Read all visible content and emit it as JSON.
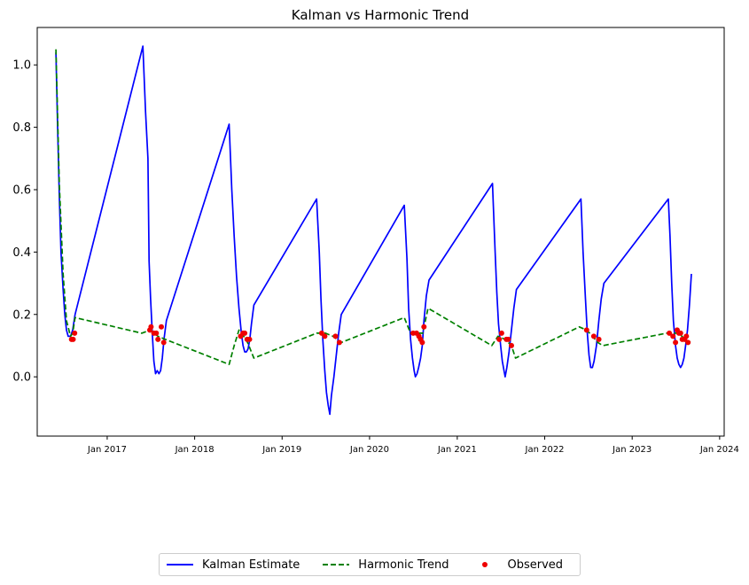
{
  "chart_data": {
    "type": "line",
    "title": "Kalman vs Harmonic Trend",
    "xlabel": "",
    "ylabel": "",
    "xlim": [
      "2016-03-15",
      "2024-01-20"
    ],
    "ylim": [
      -0.19,
      1.12
    ],
    "x_ticks": [
      "2017-01-01",
      "2018-01-01",
      "2019-01-01",
      "2020-01-01",
      "2021-01-01",
      "2022-01-01",
      "2023-01-01",
      "2024-01-01"
    ],
    "x_tick_labels": [
      "Jan 2017",
      "Jan 2018",
      "Jan 2019",
      "Jan 2020",
      "Jan 2021",
      "Jan 2022",
      "Jan 2023",
      "Jan 2024"
    ],
    "y_ticks": [
      0.0,
      0.2,
      0.4,
      0.6,
      0.8,
      1.0
    ],
    "y_tick_labels": [
      "0.0",
      "0.2",
      "0.4",
      "0.6",
      "0.8",
      "1.0"
    ],
    "grid": false,
    "legend_position": "bottom-center",
    "series": [
      {
        "name": "Kalman Estimate",
        "style": "solid",
        "color": "#0000ff",
        "points": [
          [
            "2016-06-01",
            1.04
          ],
          [
            "2016-06-08",
            0.8
          ],
          [
            "2016-06-15",
            0.58
          ],
          [
            "2016-06-22",
            0.4
          ],
          [
            "2016-07-01",
            0.28
          ],
          [
            "2016-07-08",
            0.2
          ],
          [
            "2016-07-15",
            0.15
          ],
          [
            "2016-07-22",
            0.13
          ],
          [
            "2016-08-01",
            0.13
          ],
          [
            "2016-08-10",
            0.15
          ],
          [
            "2016-08-20",
            0.2
          ],
          [
            "2017-05-30",
            1.06
          ],
          [
            "2017-06-10",
            0.85
          ],
          [
            "2017-06-20",
            0.7
          ],
          [
            "2017-06-25",
            0.37
          ],
          [
            "2017-07-01",
            0.25
          ],
          [
            "2017-07-08",
            0.14
          ],
          [
            "2017-07-15",
            0.05
          ],
          [
            "2017-07-22",
            0.01
          ],
          [
            "2017-07-29",
            0.02
          ],
          [
            "2017-08-05",
            0.01
          ],
          [
            "2017-08-12",
            0.02
          ],
          [
            "2017-08-19",
            0.06
          ],
          [
            "2017-08-26",
            0.12
          ],
          [
            "2017-09-05",
            0.18
          ],
          [
            "2018-05-25",
            0.81
          ],
          [
            "2018-06-05",
            0.6
          ],
          [
            "2018-06-15",
            0.45
          ],
          [
            "2018-06-25",
            0.32
          ],
          [
            "2018-07-05",
            0.22
          ],
          [
            "2018-07-15",
            0.14
          ],
          [
            "2018-07-22",
            0.1
          ],
          [
            "2018-07-29",
            0.08
          ],
          [
            "2018-08-05",
            0.08
          ],
          [
            "2018-08-12",
            0.09
          ],
          [
            "2018-08-19",
            0.12
          ],
          [
            "2018-08-26",
            0.17
          ],
          [
            "2018-09-05",
            0.23
          ],
          [
            "2019-05-25",
            0.57
          ],
          [
            "2019-06-05",
            0.4
          ],
          [
            "2019-06-12",
            0.25
          ],
          [
            "2019-06-20",
            0.12
          ],
          [
            "2019-06-28",
            0.02
          ],
          [
            "2019-07-05",
            -0.05
          ],
          [
            "2019-07-12",
            -0.09
          ],
          [
            "2019-07-19",
            -0.12
          ],
          [
            "2019-07-26",
            -0.06
          ],
          [
            "2019-08-05",
            0.0
          ],
          [
            "2019-08-15",
            0.07
          ],
          [
            "2019-08-25",
            0.14
          ],
          [
            "2019-09-05",
            0.2
          ],
          [
            "2020-05-25",
            0.55
          ],
          [
            "2020-06-05",
            0.38
          ],
          [
            "2020-06-12",
            0.22
          ],
          [
            "2020-06-20",
            0.12
          ],
          [
            "2020-06-28",
            0.06
          ],
          [
            "2020-07-05",
            0.02
          ],
          [
            "2020-07-10",
            0.0
          ],
          [
            "2020-07-17",
            0.01
          ],
          [
            "2020-07-24",
            0.03
          ],
          [
            "2020-08-01",
            0.06
          ],
          [
            "2020-08-08",
            0.1
          ],
          [
            "2020-08-15",
            0.18
          ],
          [
            "2020-08-25",
            0.26
          ],
          [
            "2020-09-05",
            0.31
          ],
          [
            "2021-05-28",
            0.62
          ],
          [
            "2021-06-08",
            0.4
          ],
          [
            "2021-06-15",
            0.27
          ],
          [
            "2021-06-22",
            0.17
          ],
          [
            "2021-07-01",
            0.1
          ],
          [
            "2021-07-08",
            0.05
          ],
          [
            "2021-07-15",
            0.02
          ],
          [
            "2021-07-20",
            0.0
          ],
          [
            "2021-07-27",
            0.03
          ],
          [
            "2021-08-05",
            0.08
          ],
          [
            "2021-08-15",
            0.15
          ],
          [
            "2021-08-25",
            0.22
          ],
          [
            "2021-09-05",
            0.28
          ],
          [
            "2022-06-01",
            0.57
          ],
          [
            "2022-06-10",
            0.4
          ],
          [
            "2022-06-20",
            0.25
          ],
          [
            "2022-06-28",
            0.14
          ],
          [
            "2022-07-05",
            0.07
          ],
          [
            "2022-07-12",
            0.03
          ],
          [
            "2022-07-19",
            0.03
          ],
          [
            "2022-07-26",
            0.05
          ],
          [
            "2022-08-05",
            0.1
          ],
          [
            "2022-08-15",
            0.18
          ],
          [
            "2022-08-25",
            0.25
          ],
          [
            "2022-09-05",
            0.3
          ],
          [
            "2023-06-01",
            0.57
          ],
          [
            "2023-06-08",
            0.45
          ],
          [
            "2023-06-15",
            0.3
          ],
          [
            "2023-06-22",
            0.18
          ],
          [
            "2023-07-01",
            0.1
          ],
          [
            "2023-07-08",
            0.06
          ],
          [
            "2023-07-15",
            0.04
          ],
          [
            "2023-07-22",
            0.03
          ],
          [
            "2023-07-29",
            0.04
          ],
          [
            "2023-08-05",
            0.06
          ],
          [
            "2023-08-12",
            0.1
          ],
          [
            "2023-08-20",
            0.15
          ],
          [
            "2023-08-28",
            0.23
          ],
          [
            "2023-09-05",
            0.33
          ]
        ]
      },
      {
        "name": "Harmonic Trend",
        "style": "dashed",
        "color": "#008000",
        "points": [
          [
            "2016-06-01",
            1.05
          ],
          [
            "2016-06-15",
            0.62
          ],
          [
            "2016-07-01",
            0.33
          ],
          [
            "2016-07-15",
            0.18
          ],
          [
            "2016-08-01",
            0.13
          ],
          [
            "2016-08-10",
            0.14
          ],
          [
            "2016-08-20",
            0.19
          ],
          [
            "2017-05-25",
            0.14
          ],
          [
            "2017-07-01",
            0.15
          ],
          [
            "2017-08-01",
            0.13
          ],
          [
            "2017-09-01",
            0.12
          ],
          [
            "2018-05-25",
            0.04
          ],
          [
            "2018-06-15",
            0.1
          ],
          [
            "2018-07-05",
            0.15
          ],
          [
            "2018-07-25",
            0.13
          ],
          [
            "2018-08-10",
            0.11
          ],
          [
            "2018-09-05",
            0.06
          ],
          [
            "2019-05-25",
            0.14
          ],
          [
            "2019-07-01",
            0.14
          ],
          [
            "2019-08-01",
            0.13
          ],
          [
            "2019-09-05",
            0.11
          ],
          [
            "2020-05-25",
            0.19
          ],
          [
            "2020-06-20",
            0.14
          ],
          [
            "2020-07-15",
            0.14
          ],
          [
            "2020-08-10",
            0.14
          ],
          [
            "2020-09-01",
            0.22
          ],
          [
            "2021-05-25",
            0.1
          ],
          [
            "2021-06-20",
            0.13
          ],
          [
            "2021-07-20",
            0.12
          ],
          [
            "2021-08-15",
            0.1
          ],
          [
            "2021-09-01",
            0.06
          ],
          [
            "2022-05-25",
            0.16
          ],
          [
            "2022-06-25",
            0.15
          ],
          [
            "2022-07-20",
            0.13
          ],
          [
            "2022-08-10",
            0.11
          ],
          [
            "2022-09-01",
            0.1
          ],
          [
            "2023-05-25",
            0.14
          ],
          [
            "2023-06-15",
            0.14
          ],
          [
            "2023-07-15",
            0.14
          ],
          [
            "2023-08-10",
            0.12
          ],
          [
            "2023-09-01",
            0.11
          ]
        ]
      },
      {
        "name": "Observed",
        "style": "markers",
        "color": "#ee0000",
        "points": [
          [
            "2016-08-05",
            0.12
          ],
          [
            "2016-08-12",
            0.12
          ],
          [
            "2016-08-18",
            0.14
          ],
          [
            "2017-06-28",
            0.15
          ],
          [
            "2017-07-03",
            0.16
          ],
          [
            "2017-07-15",
            0.14
          ],
          [
            "2017-07-25",
            0.14
          ],
          [
            "2017-08-01",
            0.12
          ],
          [
            "2017-08-15",
            0.16
          ],
          [
            "2017-08-25",
            0.11
          ],
          [
            "2018-07-12",
            0.13
          ],
          [
            "2018-07-22",
            0.14
          ],
          [
            "2018-07-29",
            0.14
          ],
          [
            "2018-08-08",
            0.12
          ],
          [
            "2018-08-18",
            0.12
          ],
          [
            "2019-06-15",
            0.14
          ],
          [
            "2019-06-28",
            0.13
          ],
          [
            "2019-08-12",
            0.13
          ],
          [
            "2019-08-28",
            0.11
          ],
          [
            "2020-07-01",
            0.14
          ],
          [
            "2020-07-15",
            0.14
          ],
          [
            "2020-07-25",
            0.13
          ],
          [
            "2020-08-01",
            0.12
          ],
          [
            "2020-08-08",
            0.11
          ],
          [
            "2020-08-15",
            0.16
          ],
          [
            "2021-06-25",
            0.12
          ],
          [
            "2021-07-05",
            0.14
          ],
          [
            "2021-07-25",
            0.12
          ],
          [
            "2021-08-02",
            0.12
          ],
          [
            "2021-08-15",
            0.1
          ],
          [
            "2022-06-25",
            0.15
          ],
          [
            "2022-07-25",
            0.13
          ],
          [
            "2022-08-15",
            0.12
          ],
          [
            "2023-06-05",
            0.14
          ],
          [
            "2023-06-20",
            0.13
          ],
          [
            "2023-07-01",
            0.11
          ],
          [
            "2023-07-08",
            0.15
          ],
          [
            "2023-07-15",
            0.14
          ],
          [
            "2023-07-22",
            0.14
          ],
          [
            "2023-07-29",
            0.12
          ],
          [
            "2023-08-08",
            0.12
          ],
          [
            "2023-08-15",
            0.13
          ],
          [
            "2023-08-22",
            0.11
          ]
        ]
      }
    ]
  },
  "legend": {
    "items": [
      {
        "label": "Kalman Estimate"
      },
      {
        "label": "Harmonic Trend"
      },
      {
        "label": "Observed"
      }
    ]
  }
}
